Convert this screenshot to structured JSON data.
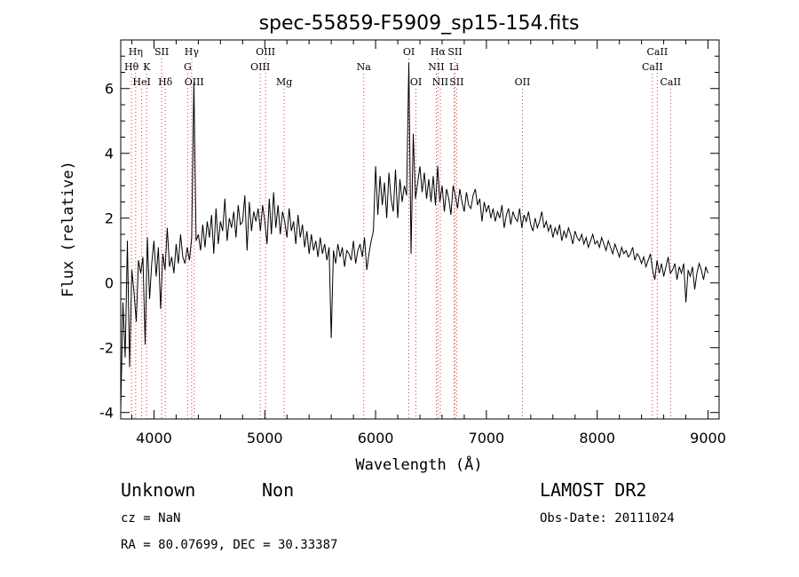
{
  "chart_data": {
    "type": "line",
    "title": "spec-55859-F5909_sp15-154.fits",
    "xlabel": "Wavelength (Å)",
    "ylabel": "Flux (relative)",
    "xlim": [
      3700,
      9100
    ],
    "ylim": [
      -4.2,
      7.5
    ],
    "x_ticks": [
      4000,
      5000,
      6000,
      7000,
      8000,
      9000
    ],
    "y_ticks": [
      -4,
      -2,
      0,
      2,
      4,
      6
    ],
    "grid": false,
    "legend": "none",
    "series": [
      {
        "x": [
          3700,
          3720,
          3740,
          3760,
          3780,
          3800,
          3820,
          3840,
          3860,
          3880,
          3900,
          3920,
          3940,
          3960,
          3980,
          4000,
          4020,
          4040,
          4060,
          4080,
          4100,
          4120,
          4140,
          4160,
          4180,
          4200,
          4220,
          4240,
          4260,
          4280,
          4300,
          4320,
          4340,
          4360,
          4380,
          4400,
          4420,
          4440,
          4460,
          4480,
          4500,
          4520,
          4540,
          4560,
          4580,
          4600,
          4620,
          4640,
          4660,
          4680,
          4700,
          4720,
          4740,
          4760,
          4780,
          4800,
          4820,
          4840,
          4860,
          4880,
          4900,
          4920,
          4940,
          4960,
          4980,
          5000,
          5020,
          5040,
          5060,
          5080,
          5100,
          5120,
          5140,
          5160,
          5180,
          5200,
          5220,
          5240,
          5260,
          5280,
          5300,
          5320,
          5340,
          5360,
          5380,
          5400,
          5420,
          5440,
          5460,
          5480,
          5500,
          5520,
          5540,
          5560,
          5580,
          5600,
          5620,
          5640,
          5660,
          5680,
          5700,
          5720,
          5740,
          5760,
          5780,
          5800,
          5820,
          5840,
          5860,
          5880,
          5900,
          5920,
          5940,
          5960,
          5980,
          6000,
          6020,
          6040,
          6060,
          6080,
          6100,
          6120,
          6140,
          6160,
          6180,
          6200,
          6220,
          6240,
          6260,
          6280,
          6300,
          6320,
          6340,
          6360,
          6380,
          6400,
          6420,
          6440,
          6460,
          6480,
          6500,
          6520,
          6540,
          6560,
          6580,
          6600,
          6620,
          6640,
          6660,
          6680,
          6700,
          6720,
          6740,
          6760,
          6780,
          6800,
          6820,
          6840,
          6860,
          6880,
          6900,
          6920,
          6940,
          6960,
          6980,
          7000,
          7020,
          7040,
          7060,
          7080,
          7100,
          7120,
          7140,
          7160,
          7180,
          7200,
          7220,
          7240,
          7260,
          7280,
          7300,
          7320,
          7340,
          7360,
          7380,
          7400,
          7420,
          7440,
          7460,
          7480,
          7500,
          7520,
          7540,
          7560,
          7580,
          7600,
          7620,
          7640,
          7660,
          7680,
          7700,
          7720,
          7740,
          7760,
          7780,
          7800,
          7820,
          7840,
          7860,
          7880,
          7900,
          7920,
          7940,
          7960,
          7980,
          8000,
          8020,
          8040,
          8060,
          8080,
          8100,
          8120,
          8140,
          8160,
          8180,
          8200,
          8220,
          8240,
          8260,
          8280,
          8300,
          8320,
          8340,
          8360,
          8380,
          8400,
          8420,
          8440,
          8460,
          8480,
          8500,
          8520,
          8540,
          8560,
          8580,
          8600,
          8620,
          8640,
          8660,
          8680,
          8700,
          8720,
          8740,
          8760,
          8780,
          8800,
          8820,
          8840,
          8860,
          8880,
          8900,
          8920,
          8940,
          8960,
          8980,
          9000
        ],
        "y": [
          -3.9,
          -0.6,
          -2.3,
          1.3,
          -2.6,
          0.4,
          -0.3,
          -1.2,
          0.7,
          0.3,
          0.8,
          -1.9,
          1.4,
          -0.5,
          0.6,
          1.3,
          0.2,
          1.1,
          -0.8,
          0.9,
          0.4,
          1.7,
          0.5,
          0.8,
          0.3,
          1.2,
          0.6,
          1.5,
          0.8,
          0.6,
          1.1,
          0.7,
          1.4,
          6.2,
          1.3,
          1.5,
          1.0,
          1.8,
          1.1,
          1.9,
          1.4,
          2.1,
          0.9,
          2.3,
          1.2,
          1.9,
          1.6,
          2.6,
          1.3,
          2.0,
          1.7,
          2.2,
          1.4,
          2.4,
          1.8,
          1.9,
          2.7,
          1.0,
          2.5,
          1.6,
          2.2,
          1.9,
          2.3,
          1.6,
          2.4,
          1.9,
          1.2,
          2.6,
          1.5,
          2.8,
          1.7,
          2.4,
          1.5,
          2.2,
          1.9,
          1.4,
          2.3,
          1.6,
          1.9,
          1.2,
          2.1,
          1.4,
          1.8,
          1.1,
          1.6,
          0.9,
          1.5,
          1.0,
          1.3,
          0.8,
          1.4,
          0.9,
          1.2,
          0.7,
          1.1,
          -1.7,
          1.0,
          0.6,
          1.2,
          0.8,
          1.1,
          0.5,
          1.0,
          0.9,
          0.7,
          1.3,
          0.6,
          1.0,
          1.2,
          0.8,
          1.4,
          0.4,
          0.9,
          1.3,
          1.6,
          3.6,
          2.1,
          3.3,
          2.4,
          3.1,
          2.0,
          3.4,
          2.6,
          2.2,
          3.5,
          2.0,
          3.2,
          2.5,
          3.0,
          2.7,
          6.8,
          0.9,
          4.6,
          2.6,
          3.1,
          3.6,
          2.8,
          3.4,
          2.6,
          3.2,
          2.5,
          3.3,
          2.4,
          3.6,
          2.5,
          3.0,
          2.2,
          2.9,
          2.6,
          2.1,
          3.0,
          2.7,
          2.3,
          2.9,
          2.5,
          2.2,
          2.8,
          2.4,
          2.3,
          2.7,
          2.9,
          2.4,
          2.6,
          1.9,
          2.5,
          2.2,
          2.4,
          2.0,
          2.3,
          1.9,
          2.2,
          2.0,
          2.4,
          1.7,
          2.1,
          2.3,
          1.8,
          2.2,
          2.0,
          1.9,
          2.3,
          1.7,
          2.1,
          1.9,
          2.2,
          1.8,
          1.6,
          2.0,
          1.7,
          1.9,
          2.2,
          1.7,
          1.9,
          1.6,
          1.8,
          1.4,
          1.7,
          1.5,
          1.8,
          1.3,
          1.6,
          1.4,
          1.7,
          1.5,
          1.2,
          1.6,
          1.4,
          1.3,
          1.5,
          1.2,
          1.4,
          1.1,
          1.3,
          1.5,
          1.2,
          1.3,
          1.1,
          1.4,
          1.2,
          1.0,
          1.3,
          1.1,
          0.9,
          1.2,
          1.0,
          0.8,
          1.1,
          0.9,
          1.0,
          0.8,
          0.9,
          1.1,
          0.7,
          0.9,
          0.8,
          0.6,
          0.8,
          0.5,
          0.7,
          0.9,
          0.4,
          0.1,
          0.7,
          0.3,
          0.6,
          0.2,
          0.5,
          0.8,
          0.3,
          0.4,
          0.6,
          0.1,
          0.5,
          0.3,
          0.6,
          -0.6,
          0.4,
          0.2,
          0.5,
          -0.2,
          0.3,
          0.6,
          0.4,
          0.1,
          0.5,
          0.3
        ]
      }
    ],
    "spectral_lines": [
      {
        "label": "Hη",
        "x": 3835,
        "row": 0
      },
      {
        "label": "Hθ",
        "x": 3797,
        "row": 1
      },
      {
        "label": "HeI",
        "x": 3889,
        "row": 2
      },
      {
        "label": "K",
        "x": 3934,
        "row": 1
      },
      {
        "label": "SII",
        "x": 4069,
        "row": 0
      },
      {
        "label": "Hδ",
        "x": 4102,
        "row": 2
      },
      {
        "label": "Hγ",
        "x": 4340,
        "row": 0
      },
      {
        "label": "G",
        "x": 4304,
        "row": 1
      },
      {
        "label": "OIII",
        "x": 4363,
        "row": 2
      },
      {
        "label": "OIII",
        "x": 5007,
        "row": 0
      },
      {
        "label": "OIII",
        "x": 4959,
        "row": 1
      },
      {
        "label": "Mg",
        "x": 5175,
        "row": 2
      },
      {
        "label": "Na",
        "x": 5893,
        "row": 1
      },
      {
        "label": "OI",
        "x": 6300,
        "row": 0
      },
      {
        "label": "OI",
        "x": 6364,
        "row": 2
      },
      {
        "label": "Hα",
        "x": 6563,
        "row": 0
      },
      {
        "label": "SII",
        "x": 6716,
        "row": 0
      },
      {
        "label": "NII",
        "x": 6548,
        "row": 1
      },
      {
        "label": "Li",
        "x": 6708,
        "row": 1
      },
      {
        "label": "NII",
        "x": 6584,
        "row": 2
      },
      {
        "label": "SII",
        "x": 6731,
        "row": 2
      },
      {
        "label": "OII",
        "x": 7325,
        "row": 2
      },
      {
        "label": "CaII",
        "x": 8542,
        "row": 0
      },
      {
        "label": "CaII",
        "x": 8498,
        "row": 1
      },
      {
        "label": "CaII",
        "x": 8662,
        "row": 2
      }
    ],
    "spectral_line_color": "#e03030"
  },
  "info": {
    "class": "Unknown",
    "subclass": "Non",
    "cz": "cz = NaN",
    "coords": "RA =  80.07699, DEC =  30.33387",
    "survey": "LAMOST DR2",
    "obs_date": "Obs-Date: 20111024"
  }
}
